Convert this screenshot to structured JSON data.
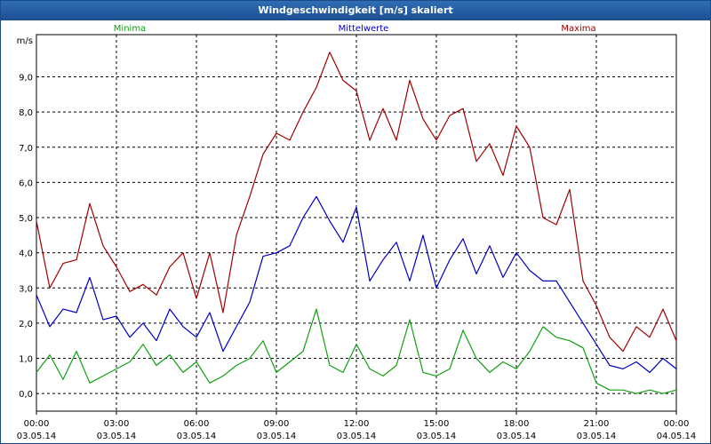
{
  "window": {
    "title": "Windgeschwindigkeit [m/s] skaliert"
  },
  "colors": {
    "minima": "#10a010",
    "mittelwerte": "#0000c0",
    "maxima": "#a00000",
    "grid": "#000000"
  },
  "chart_data": {
    "type": "line",
    "title": "Windgeschwindigkeit [m/s] skaliert",
    "ylabel": "m/s",
    "ylim": [
      -0.5,
      10.2
    ],
    "xlim_hours": [
      0,
      24
    ],
    "yticks": [
      0,
      1,
      2,
      3,
      4,
      5,
      6,
      7,
      8,
      9
    ],
    "ytick_labels": [
      "0,0",
      "1,0",
      "2,0",
      "3,0",
      "4,0",
      "5,0",
      "6,0",
      "7,0",
      "8,0",
      "9,0"
    ],
    "xticks": [
      {
        "time": "00:00",
        "date": "03.05.14"
      },
      {
        "time": "03:00",
        "date": "03.05.14"
      },
      {
        "time": "06:00",
        "date": "03.05.14"
      },
      {
        "time": "09:00",
        "date": "03.05.14"
      },
      {
        "time": "12:00",
        "date": "03.05.14"
      },
      {
        "time": "15:00",
        "date": "03.05.14"
      },
      {
        "time": "18:00",
        "date": "03.05.14"
      },
      {
        "time": "21:00",
        "date": "03.05.14"
      },
      {
        "time": "00:00",
        "date": "04.05.14"
      }
    ],
    "grid": true,
    "legend_position": "top",
    "series": [
      {
        "name": "Minima",
        "color": "#10a010",
        "x": [
          "00:00",
          "00:30",
          "01:00",
          "01:30",
          "02:00",
          "02:30",
          "03:00",
          "03:30",
          "04:00",
          "04:30",
          "05:00",
          "05:30",
          "06:00",
          "06:30",
          "07:00",
          "07:30",
          "08:00",
          "08:30",
          "09:00",
          "09:30",
          "10:00",
          "10:30",
          "11:00",
          "11:30",
          "12:00",
          "12:30",
          "13:00",
          "13:30",
          "14:00",
          "14:30",
          "15:00",
          "15:30",
          "16:00",
          "16:30",
          "17:00",
          "17:30",
          "18:00",
          "18:30",
          "19:00",
          "19:30",
          "20:00",
          "20:30",
          "21:00",
          "21:30",
          "22:00",
          "22:30",
          "23:00",
          "23:30",
          "24:00"
        ],
        "values": [
          0.6,
          1.1,
          0.4,
          1.2,
          0.3,
          0.5,
          0.7,
          0.9,
          1.4,
          0.8,
          1.1,
          0.6,
          0.9,
          0.3,
          0.5,
          0.8,
          1.0,
          1.5,
          0.6,
          0.9,
          1.2,
          2.4,
          0.8,
          0.6,
          1.4,
          0.7,
          0.5,
          0.8,
          2.1,
          0.6,
          0.5,
          0.7,
          1.8,
          1.0,
          0.6,
          0.9,
          0.7,
          1.2,
          1.9,
          1.6,
          1.5,
          1.3,
          0.3,
          0.1,
          0.1,
          0.0,
          0.1,
          0.0,
          0.1
        ]
      },
      {
        "name": "Mittelwerte",
        "color": "#0000c0",
        "x": [
          "00:00",
          "00:30",
          "01:00",
          "01:30",
          "02:00",
          "02:30",
          "03:00",
          "03:30",
          "04:00",
          "04:30",
          "05:00",
          "05:30",
          "06:00",
          "06:30",
          "07:00",
          "07:30",
          "08:00",
          "08:30",
          "09:00",
          "09:30",
          "10:00",
          "10:30",
          "11:00",
          "11:30",
          "12:00",
          "12:30",
          "13:00",
          "13:30",
          "14:00",
          "14:30",
          "15:00",
          "15:30",
          "16:00",
          "16:30",
          "17:00",
          "17:30",
          "18:00",
          "18:30",
          "19:00",
          "19:30",
          "20:00",
          "20:30",
          "21:00",
          "21:30",
          "22:00",
          "22:30",
          "23:00",
          "23:30",
          "24:00"
        ],
        "values": [
          2.8,
          1.9,
          2.4,
          2.3,
          3.3,
          2.1,
          2.2,
          1.6,
          2.0,
          1.5,
          2.4,
          1.9,
          1.6,
          2.3,
          1.2,
          1.9,
          2.6,
          3.9,
          4.0,
          4.2,
          5.0,
          5.6,
          4.9,
          4.3,
          5.3,
          3.2,
          3.8,
          4.3,
          3.2,
          4.5,
          3.0,
          3.8,
          4.4,
          3.4,
          4.2,
          3.3,
          4.0,
          3.5,
          3.2,
          3.2,
          2.6,
          2.0,
          1.4,
          0.8,
          0.7,
          0.9,
          0.6,
          1.0,
          0.7
        ]
      },
      {
        "name": "Maxima",
        "color": "#a00000",
        "x": [
          "00:00",
          "00:30",
          "01:00",
          "01:30",
          "02:00",
          "02:30",
          "03:00",
          "03:30",
          "04:00",
          "04:30",
          "05:00",
          "05:30",
          "06:00",
          "06:30",
          "07:00",
          "07:30",
          "08:00",
          "08:30",
          "09:00",
          "09:30",
          "10:00",
          "10:30",
          "11:00",
          "11:30",
          "12:00",
          "12:30",
          "13:00",
          "13:30",
          "14:00",
          "14:30",
          "15:00",
          "15:30",
          "16:00",
          "16:30",
          "17:00",
          "17:30",
          "18:00",
          "18:30",
          "19:00",
          "19:30",
          "20:00",
          "20:30",
          "21:00",
          "21:30",
          "22:00",
          "22:30",
          "23:00",
          "23:30",
          "24:00"
        ],
        "values": [
          4.9,
          3.0,
          3.7,
          3.8,
          5.4,
          4.2,
          3.6,
          2.9,
          3.1,
          2.8,
          3.6,
          4.0,
          2.7,
          4.0,
          2.3,
          4.5,
          5.6,
          6.8,
          7.4,
          7.2,
          8.0,
          8.7,
          9.7,
          8.9,
          8.6,
          7.2,
          8.1,
          7.2,
          8.9,
          7.8,
          7.2,
          7.9,
          8.1,
          6.6,
          7.1,
          6.2,
          7.6,
          7.0,
          5.0,
          4.8,
          5.8,
          3.2,
          2.5,
          1.6,
          1.2,
          1.9,
          1.6,
          2.4,
          1.5
        ]
      }
    ]
  }
}
